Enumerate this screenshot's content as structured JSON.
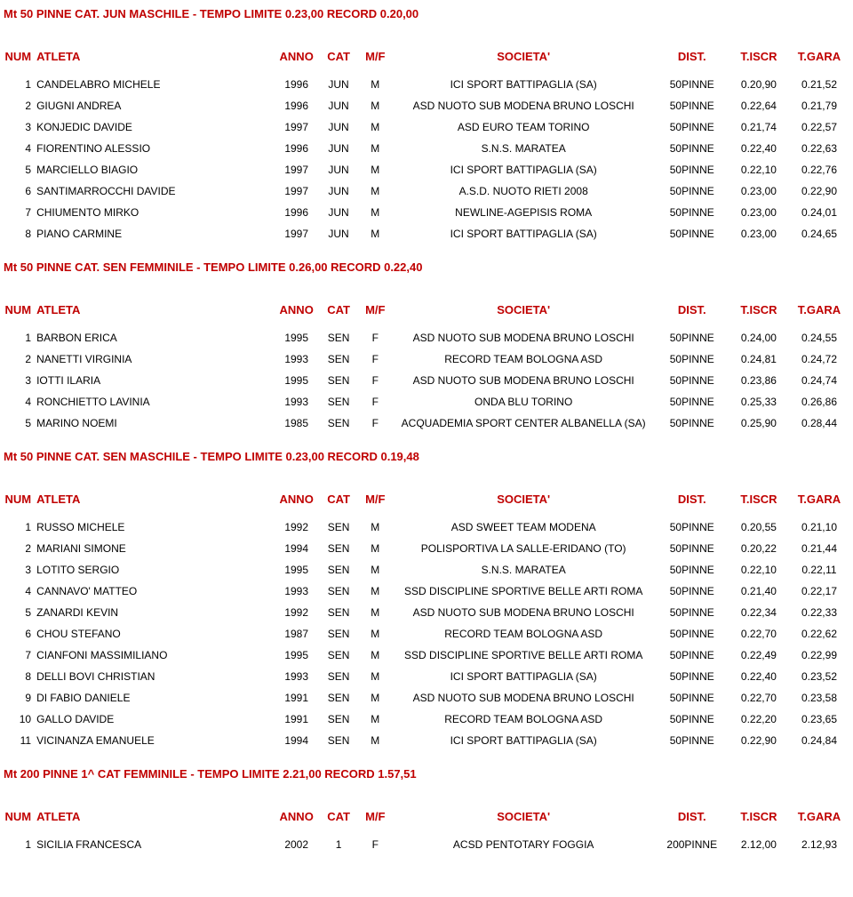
{
  "columns": {
    "num": "NUM",
    "atleta": "ATLETA",
    "anno": "ANNO",
    "cat": "CAT",
    "mf": "M/F",
    "societa": "SOCIETA'",
    "dist": "DIST.",
    "tiscr": "T.ISCR",
    "tgara": "T.GARA"
  },
  "sections": [
    {
      "title": "Mt 50 PINNE CAT. JUN MASCHILE - TEMPO LIMITE 0.23,00 RECORD 0.20,00",
      "rows": [
        {
          "num": "1",
          "atleta": "CANDELABRO MICHELE",
          "anno": "1996",
          "cat": "JUN",
          "mf": "M",
          "soc": "ICI SPORT BATTIPAGLIA (SA)",
          "dist": "50PINNE",
          "tiscr": "0.20,90",
          "tgara": "0.21,52"
        },
        {
          "num": "2",
          "atleta": "GIUGNI ANDREA",
          "anno": "1996",
          "cat": "JUN",
          "mf": "M",
          "soc": "ASD NUOTO SUB MODENA BRUNO LOSCHI",
          "dist": "50PINNE",
          "tiscr": "0.22,64",
          "tgara": "0.21,79"
        },
        {
          "num": "3",
          "atleta": "KONJEDIC DAVIDE",
          "anno": "1997",
          "cat": "JUN",
          "mf": "M",
          "soc": "ASD EURO TEAM TORINO",
          "dist": "50PINNE",
          "tiscr": "0.21,74",
          "tgara": "0.22,57"
        },
        {
          "num": "4",
          "atleta": "FIORENTINO ALESSIO",
          "anno": "1996",
          "cat": "JUN",
          "mf": "M",
          "soc": "S.N.S. MARATEA",
          "dist": "50PINNE",
          "tiscr": "0.22,40",
          "tgara": "0.22,63"
        },
        {
          "num": "5",
          "atleta": "MARCIELLO BIAGIO",
          "anno": "1997",
          "cat": "JUN",
          "mf": "M",
          "soc": "ICI SPORT BATTIPAGLIA (SA)",
          "dist": "50PINNE",
          "tiscr": "0.22,10",
          "tgara": "0.22,76"
        },
        {
          "num": "6",
          "atleta": "SANTIMARROCCHI DAVIDE",
          "anno": "1997",
          "cat": "JUN",
          "mf": "M",
          "soc": "A.S.D. NUOTO RIETI 2008",
          "dist": "50PINNE",
          "tiscr": "0.23,00",
          "tgara": "0.22,90"
        },
        {
          "num": "7",
          "atleta": "CHIUMENTO MIRKO",
          "anno": "1996",
          "cat": "JUN",
          "mf": "M",
          "soc": "NEWLINE-AGEPISIS ROMA",
          "dist": "50PINNE",
          "tiscr": "0.23,00",
          "tgara": "0.24,01"
        },
        {
          "num": "8",
          "atleta": "PIANO CARMINE",
          "anno": "1997",
          "cat": "JUN",
          "mf": "M",
          "soc": "ICI SPORT BATTIPAGLIA (SA)",
          "dist": "50PINNE",
          "tiscr": "0.23,00",
          "tgara": "0.24,65"
        }
      ]
    },
    {
      "title": "Mt 50 PINNE CAT. SEN FEMMINILE - TEMPO LIMITE 0.26,00 RECORD 0.22,40",
      "rows": [
        {
          "num": "1",
          "atleta": "BARBON ERICA",
          "anno": "1995",
          "cat": "SEN",
          "mf": "F",
          "soc": "ASD NUOTO SUB MODENA BRUNO LOSCHI",
          "dist": "50PINNE",
          "tiscr": "0.24,00",
          "tgara": "0.24,55"
        },
        {
          "num": "2",
          "atleta": "NANETTI VIRGINIA",
          "anno": "1993",
          "cat": "SEN",
          "mf": "F",
          "soc": "RECORD TEAM BOLOGNA ASD",
          "dist": "50PINNE",
          "tiscr": "0.24,81",
          "tgara": "0.24,72"
        },
        {
          "num": "3",
          "atleta": "IOTTI ILARIA",
          "anno": "1995",
          "cat": "SEN",
          "mf": "F",
          "soc": "ASD NUOTO SUB MODENA BRUNO LOSCHI",
          "dist": "50PINNE",
          "tiscr": "0.23,86",
          "tgara": "0.24,74"
        },
        {
          "num": "4",
          "atleta": "RONCHIETTO LAVINIA",
          "anno": "1993",
          "cat": "SEN",
          "mf": "F",
          "soc": "ONDA BLU TORINO",
          "dist": "50PINNE",
          "tiscr": "0.25,33",
          "tgara": "0.26,86"
        },
        {
          "num": "5",
          "atleta": "MARINO NOEMI",
          "anno": "1985",
          "cat": "SEN",
          "mf": "F",
          "soc": "ACQUADEMIA SPORT CENTER ALBANELLA (SA)",
          "dist": "50PINNE",
          "tiscr": "0.25,90",
          "tgara": "0.28,44"
        }
      ]
    },
    {
      "title": "Mt 50 PINNE CAT. SEN MASCHILE - TEMPO LIMITE 0.23,00 RECORD 0.19,48",
      "rows": [
        {
          "num": "1",
          "atleta": "RUSSO MICHELE",
          "anno": "1992",
          "cat": "SEN",
          "mf": "M",
          "soc": "ASD SWEET TEAM MODENA",
          "dist": "50PINNE",
          "tiscr": "0.20,55",
          "tgara": "0.21,10"
        },
        {
          "num": "2",
          "atleta": "MARIANI SIMONE",
          "anno": "1994",
          "cat": "SEN",
          "mf": "M",
          "soc": "POLISPORTIVA LA SALLE-ERIDANO (TO)",
          "dist": "50PINNE",
          "tiscr": "0.20,22",
          "tgara": "0.21,44"
        },
        {
          "num": "3",
          "atleta": "LOTITO SERGIO",
          "anno": "1995",
          "cat": "SEN",
          "mf": "M",
          "soc": "S.N.S. MARATEA",
          "dist": "50PINNE",
          "tiscr": "0.22,10",
          "tgara": "0.22,11"
        },
        {
          "num": "4",
          "atleta": "CANNAVO' MATTEO",
          "anno": "1993",
          "cat": "SEN",
          "mf": "M",
          "soc": "SSD DISCIPLINE SPORTIVE BELLE ARTI ROMA",
          "dist": "50PINNE",
          "tiscr": "0.21,40",
          "tgara": "0.22,17"
        },
        {
          "num": "5",
          "atleta": "ZANARDI KEVIN",
          "anno": "1992",
          "cat": "SEN",
          "mf": "M",
          "soc": "ASD NUOTO SUB MODENA BRUNO LOSCHI",
          "dist": "50PINNE",
          "tiscr": "0.22,34",
          "tgara": "0.22,33"
        },
        {
          "num": "6",
          "atleta": "CHOU STEFANO",
          "anno": "1987",
          "cat": "SEN",
          "mf": "M",
          "soc": "RECORD TEAM BOLOGNA ASD",
          "dist": "50PINNE",
          "tiscr": "0.22,70",
          "tgara": "0.22,62"
        },
        {
          "num": "7",
          "atleta": "CIANFONI MASSIMILIANO",
          "anno": "1995",
          "cat": "SEN",
          "mf": "M",
          "soc": "SSD DISCIPLINE SPORTIVE BELLE ARTI ROMA",
          "dist": "50PINNE",
          "tiscr": "0.22,49",
          "tgara": "0.22,99"
        },
        {
          "num": "8",
          "atleta": "DELLI BOVI CHRISTIAN",
          "anno": "1993",
          "cat": "SEN",
          "mf": "M",
          "soc": "ICI SPORT BATTIPAGLIA (SA)",
          "dist": "50PINNE",
          "tiscr": "0.22,40",
          "tgara": "0.23,52"
        },
        {
          "num": "9",
          "atleta": "DI FABIO DANIELE",
          "anno": "1991",
          "cat": "SEN",
          "mf": "M",
          "soc": "ASD NUOTO SUB MODENA BRUNO LOSCHI",
          "dist": "50PINNE",
          "tiscr": "0.22,70",
          "tgara": "0.23,58"
        },
        {
          "num": "10",
          "atleta": "GALLO DAVIDE",
          "anno": "1991",
          "cat": "SEN",
          "mf": "M",
          "soc": "RECORD TEAM BOLOGNA ASD",
          "dist": "50PINNE",
          "tiscr": "0.22,20",
          "tgara": "0.23,65"
        },
        {
          "num": "11",
          "atleta": "VICINANZA EMANUELE",
          "anno": "1994",
          "cat": "SEN",
          "mf": "M",
          "soc": "ICI SPORT BATTIPAGLIA (SA)",
          "dist": "50PINNE",
          "tiscr": "0.22,90",
          "tgara": "0.24,84"
        }
      ]
    },
    {
      "title": "Mt 200 PINNE 1^ CAT FEMMINILE - TEMPO LIMITE 2.21,00 RECORD 1.57,51",
      "rows": [
        {
          "num": "1",
          "atleta": "SICILIA FRANCESCA",
          "anno": "2002",
          "cat": "1",
          "mf": "F",
          "soc": "ACSD PENTOTARY FOGGIA",
          "dist": "200PINNE",
          "tiscr": "2.12,00",
          "tgara": "2.12,93"
        }
      ]
    }
  ]
}
